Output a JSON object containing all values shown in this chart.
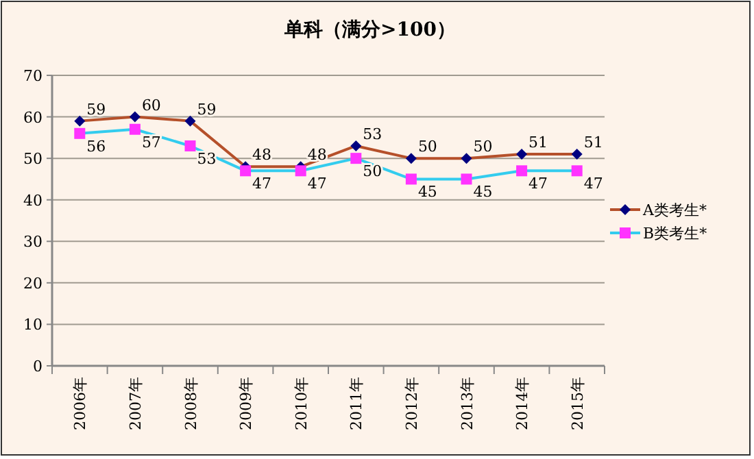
{
  "chart_data": {
    "type": "line",
    "title": "单科（满分>100）",
    "categories": [
      "2006年",
      "2007年",
      "2008年",
      "2009年",
      "2010年",
      "2011年",
      "2012年",
      "2013年",
      "2014年",
      "2015年"
    ],
    "series": [
      {
        "name": "A类考生*",
        "color": "#b5502a",
        "marker": "diamond",
        "values": [
          59,
          60,
          59,
          48,
          48,
          53,
          50,
          50,
          51,
          51
        ]
      },
      {
        "name": "B类考生*",
        "color": "#33ccee",
        "marker": "square",
        "values": [
          56,
          57,
          53,
          47,
          47,
          50,
          45,
          45,
          47,
          47
        ]
      }
    ],
    "ylim": [
      0,
      70
    ],
    "yticks": [
      0,
      10,
      20,
      30,
      40,
      50,
      60,
      70
    ],
    "grid": "y",
    "legend": "right",
    "data_labels": true
  }
}
